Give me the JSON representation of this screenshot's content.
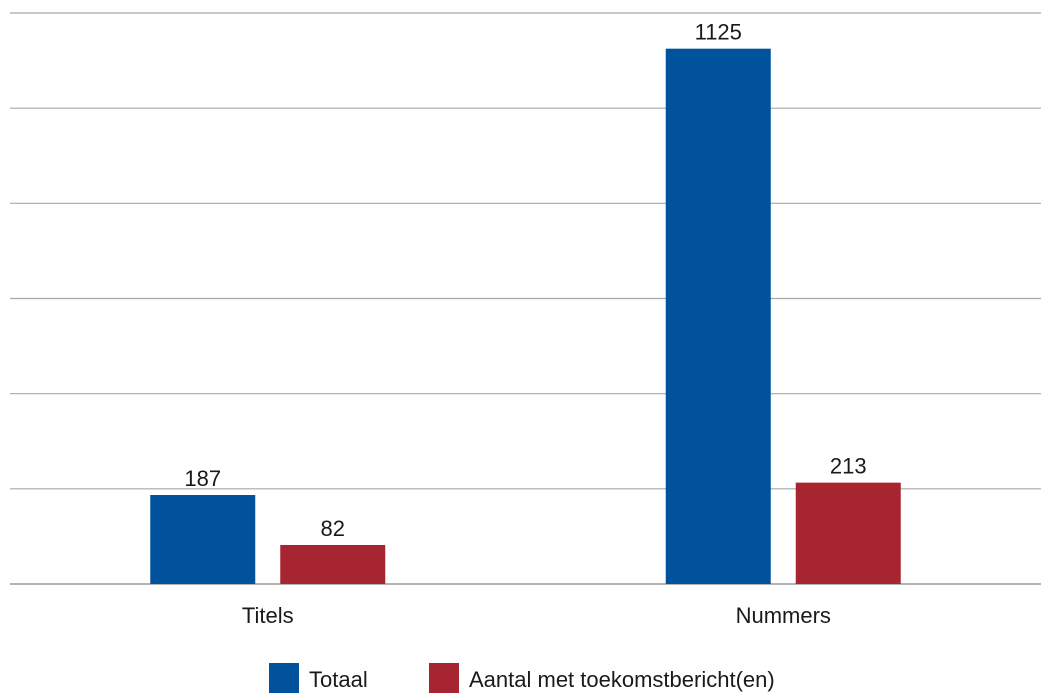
{
  "chart_data": {
    "type": "bar",
    "categories": [
      "Titels",
      "Nummers"
    ],
    "series": [
      {
        "name": "Totaal",
        "values": [
          187,
          1125
        ],
        "color": "#00529C"
      },
      {
        "name": "Aantal met toekomstbericht(en)",
        "values": [
          82,
          213
        ],
        "color": "#A72431"
      }
    ],
    "ylim": [
      0,
      1200
    ],
    "grid": true,
    "legend_position": "bottom"
  }
}
